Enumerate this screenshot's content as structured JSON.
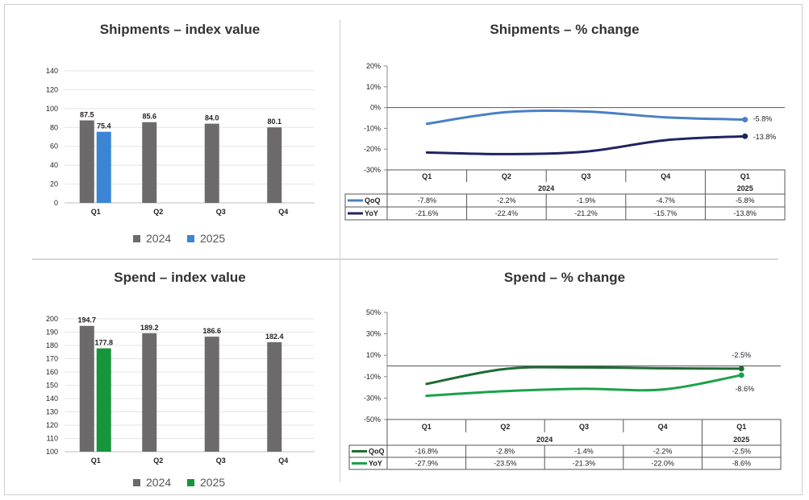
{
  "chart_data": [
    {
      "type": "bar",
      "title": "Shipments – index value",
      "categories": [
        "Q1",
        "Q2",
        "Q3",
        "Q4"
      ],
      "yticks": [
        "0",
        "20",
        "40",
        "60",
        "80",
        "100",
        "120",
        "140"
      ],
      "ylim": [
        0,
        140
      ],
      "series": [
        {
          "name": "2024",
          "values": [
            87.5,
            85.6,
            84.0,
            80.1
          ],
          "labels": [
            "87.5",
            "85.6",
            "84.0",
            "80.1"
          ],
          "color": "#6d6a6b"
        },
        {
          "name": "2025",
          "values": [
            75.4,
            null,
            null,
            null
          ],
          "labels": [
            "75.4",
            "",
            "",
            ""
          ],
          "color": "#3b85d4"
        }
      ],
      "legend_position": "bottom"
    },
    {
      "type": "line",
      "title": "Shipments – % change",
      "yticks": [
        "20%",
        "10%",
        "0%",
        "-10%",
        "-20%",
        "-30%"
      ],
      "ylim": [
        -30,
        20
      ],
      "x": [
        "Q1",
        "Q2",
        "Q3",
        "Q4",
        "Q1"
      ],
      "years": [
        "2024",
        "2025"
      ],
      "series": [
        {
          "name": "QoQ",
          "values": [
            -7.8,
            -2.2,
            -1.9,
            -4.7,
            -5.8
          ],
          "labels": [
            "-7.8%",
            "-2.2%",
            "-1.9%",
            "-4.7%",
            "-5.8%"
          ],
          "color": "#4a7fc6",
          "end_label": "-5.8%"
        },
        {
          "name": "YoY",
          "values": [
            -21.6,
            -22.4,
            -21.2,
            -15.7,
            -13.8
          ],
          "labels": [
            "-21.6%",
            "-22.4%",
            "-21.2%",
            "-15.7%",
            "-13.8%"
          ],
          "color": "#1f2460",
          "end_label": "-13.8%"
        }
      ]
    },
    {
      "type": "bar",
      "title": "Spend – index value",
      "categories": [
        "Q1",
        "Q2",
        "Q3",
        "Q4"
      ],
      "yticks": [
        "100",
        "110",
        "120",
        "130",
        "140",
        "150",
        "160",
        "170",
        "180",
        "190",
        "200"
      ],
      "ylim": [
        100,
        200
      ],
      "series": [
        {
          "name": "2024",
          "values": [
            194.7,
            189.2,
            186.6,
            182.4
          ],
          "labels": [
            "194.7",
            "189.2",
            "186.6",
            "182.4"
          ],
          "color": "#6d6a6b"
        },
        {
          "name": "2025",
          "values": [
            177.8,
            null,
            null,
            null
          ],
          "labels": [
            "177.8",
            "",
            "",
            ""
          ],
          "color": "#16953d"
        }
      ],
      "legend_position": "bottom"
    },
    {
      "type": "line",
      "title": "Spend – % change",
      "yticks": [
        "50%",
        "30%",
        "10%",
        "-10%",
        "-30%",
        "-50%"
      ],
      "ylim": [
        -50,
        50
      ],
      "x": [
        "Q1",
        "Q2",
        "Q3",
        "Q4",
        "Q1"
      ],
      "years": [
        "2024",
        "2025"
      ],
      "series": [
        {
          "name": "QoQ",
          "values": [
            -16.8,
            -2.8,
            -1.4,
            -2.2,
            -2.5
          ],
          "labels": [
            "-16.8%",
            "-2.8%",
            "-1.4%",
            "-2.2%",
            "-2.5%"
          ],
          "color": "#1e6b34",
          "end_label": "-2.5%"
        },
        {
          "name": "YoY",
          "values": [
            -27.9,
            -23.5,
            -21.3,
            -22.0,
            -8.6
          ],
          "labels": [
            "-27.9%",
            "-23.5%",
            "-21.3%",
            "-22.0%",
            "-8.6%"
          ],
          "color": "#1aa24a",
          "end_label": "-8.6%"
        }
      ]
    }
  ]
}
